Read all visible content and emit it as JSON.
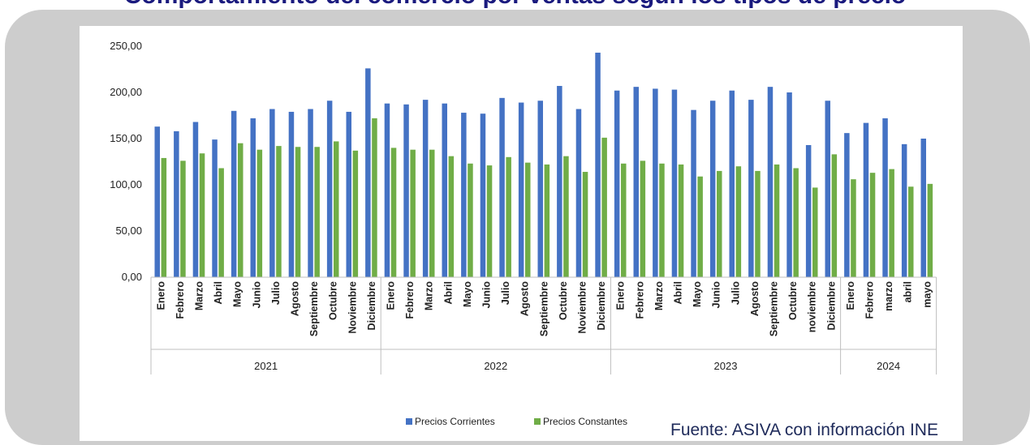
{
  "page": {
    "title": "Comportamiento del comercio por ventas según los tipos de precio",
    "source": "Fuente: ASIVA con información INE"
  },
  "colors": {
    "corrientes": "#4472c4",
    "constantes": "#70ad47",
    "card": "#cdcdcd",
    "title": "#1a1a7e"
  },
  "chart_data": {
    "type": "bar",
    "ylim": [
      0,
      250
    ],
    "yticks": [
      "0,00",
      "50,00",
      "100,00",
      "150,00",
      "200,00",
      "250,00"
    ],
    "ytick_values": [
      0,
      50,
      100,
      150,
      200,
      250
    ],
    "grid": false,
    "legend_position": "bottom",
    "categories": [
      "Enero",
      "Febrero",
      "Marzo",
      "Abril",
      "Mayo",
      "Junio",
      "Julio",
      "Agosto",
      "Septiembre",
      "Octubre",
      "Noviembre",
      "Diciembre",
      "Enero",
      "Febrero",
      "Marzo",
      "Abril",
      "Mayo",
      "Junio",
      "Julio",
      "Agosto",
      "Septiembre",
      "Octubre",
      "Noviembre",
      "Diciembre",
      "Enero",
      "Febrero",
      "Marzo",
      "Abril",
      "Mayo",
      "Junio",
      "Julio",
      "Agosto",
      "Septiembre",
      "Octubre",
      "noviembre",
      "Diciembre",
      "Enero",
      "Febrero",
      "marzo",
      "abril",
      "mayo"
    ],
    "groups": [
      {
        "label": "2021",
        "count": 12
      },
      {
        "label": "2022",
        "count": 12
      },
      {
        "label": "2023",
        "count": 12
      },
      {
        "label": "2024",
        "count": 5
      }
    ],
    "series": [
      {
        "name": "Precios Corrientes",
        "values": [
          163,
          158,
          168,
          149,
          180,
          172,
          182,
          179,
          182,
          191,
          179,
          226,
          188,
          187,
          192,
          188,
          178,
          177,
          194,
          189,
          191,
          207,
          182,
          243,
          202,
          206,
          204,
          203,
          181,
          191,
          202,
          192,
          206,
          200,
          143,
          191,
          156,
          167,
          172,
          144,
          150
        ]
      },
      {
        "name": "Precios Constantes",
        "values": [
          129,
          126,
          134,
          118,
          145,
          138,
          142,
          141,
          141,
          147,
          137,
          172,
          140,
          138,
          138,
          131,
          123,
          121,
          130,
          124,
          122,
          131,
          114,
          151,
          123,
          126,
          123,
          122,
          109,
          115,
          120,
          115,
          122,
          118,
          97,
          133,
          106,
          113,
          117,
          98,
          101
        ]
      }
    ]
  }
}
